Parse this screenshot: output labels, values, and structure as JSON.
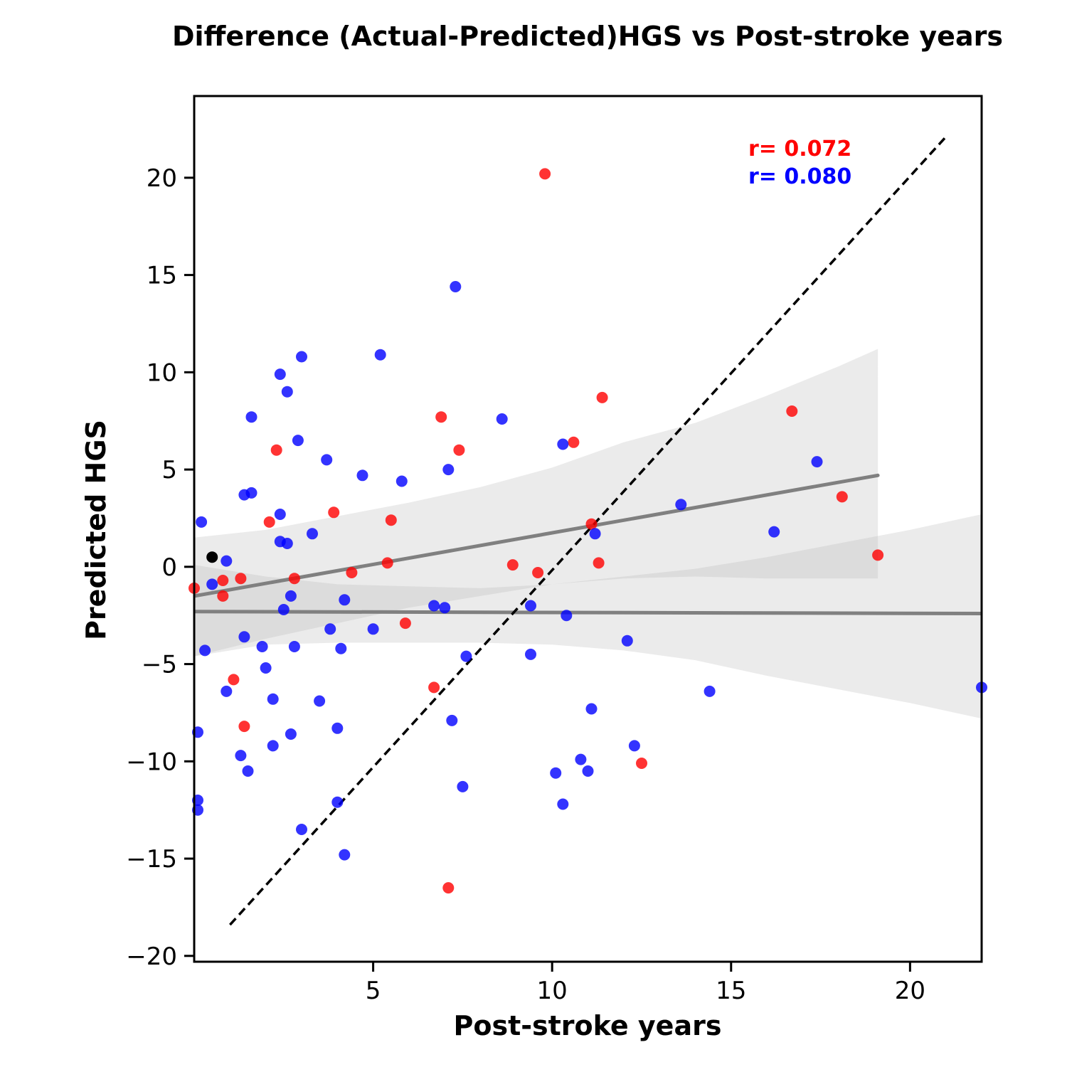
{
  "chart_data": {
    "type": "scatter",
    "title": "Difference (Actual-Predicted)HGS vs Post-stroke years",
    "xlabel": "Post-stroke years",
    "ylabel": "Predicted HGS",
    "xlim": [
      0,
      22
    ],
    "ylim": [
      -20.3,
      24.2
    ],
    "xticks": [
      5,
      10,
      15,
      20
    ],
    "yticks": [
      -20,
      -15,
      -10,
      -5,
      0,
      5,
      10,
      15,
      20
    ],
    "xtick_labels": [
      "5",
      "10",
      "15",
      "20"
    ],
    "ytick_labels": [
      "−20",
      "−15",
      "−10",
      "−5",
      "0",
      "5",
      "10",
      "15",
      "20"
    ],
    "grid": false,
    "annotations": [
      {
        "text": "r= 0.072",
        "color": "#ff0000"
      },
      {
        "text": "r= 0.080",
        "color": "#0000ff"
      }
    ],
    "identity_line": {
      "x": [
        1.0,
        21.0
      ],
      "y": [
        -18.4,
        22.1
      ],
      "style": "dashed",
      "color": "#000000"
    },
    "series": [
      {
        "color": "#ff0000",
        "points": [
          [
            0.0,
            -1.1
          ],
          [
            0.8,
            -0.7
          ],
          [
            0.8,
            -1.5
          ],
          [
            1.3,
            -0.6
          ],
          [
            1.1,
            -5.8
          ],
          [
            1.4,
            -8.2
          ],
          [
            2.1,
            2.3
          ],
          [
            2.3,
            6.0
          ],
          [
            2.8,
            -0.6
          ],
          [
            3.9,
            2.8
          ],
          [
            4.4,
            -0.3
          ],
          [
            5.4,
            0.2
          ],
          [
            5.5,
            2.4
          ],
          [
            5.9,
            -2.9
          ],
          [
            6.7,
            -6.2
          ],
          [
            6.9,
            7.7
          ],
          [
            7.1,
            -16.5
          ],
          [
            7.4,
            6.0
          ],
          [
            8.9,
            0.1
          ],
          [
            9.6,
            -0.3
          ],
          [
            9.8,
            20.2
          ],
          [
            10.6,
            6.4
          ],
          [
            11.1,
            2.2
          ],
          [
            11.3,
            0.2
          ],
          [
            11.4,
            8.7
          ],
          [
            12.5,
            -10.1
          ],
          [
            16.7,
            8.0
          ],
          [
            18.1,
            3.6
          ],
          [
            19.1,
            0.6
          ]
        ],
        "fit": {
          "x": [
            0.0,
            19.1
          ],
          "y": [
            -1.5,
            4.7
          ]
        },
        "ci": {
          "x": [
            0.0,
            2,
            4,
            6,
            8,
            10,
            12,
            14,
            16,
            18,
            19.1
          ],
          "lower": [
            -4.6,
            -3.7,
            -2.9,
            -2.1,
            -1.5,
            -0.9,
            -0.6,
            -0.5,
            -0.6,
            -0.6,
            -0.6
          ],
          "upper": [
            1.5,
            1.9,
            2.6,
            3.3,
            4.1,
            5.1,
            6.4,
            7.4,
            8.8,
            10.3,
            11.2
          ]
        }
      },
      {
        "color": "#0000ff",
        "points": [
          [
            0.1,
            -8.5
          ],
          [
            0.1,
            -12.0
          ],
          [
            0.1,
            -12.5
          ],
          [
            0.2,
            2.3
          ],
          [
            0.3,
            -4.3
          ],
          [
            0.5,
            -0.9
          ],
          [
            0.9,
            0.3
          ],
          [
            0.9,
            -6.4
          ],
          [
            1.3,
            -9.7
          ],
          [
            1.4,
            3.7
          ],
          [
            1.4,
            -3.6
          ],
          [
            1.5,
            -10.5
          ],
          [
            1.6,
            7.7
          ],
          [
            1.6,
            3.8
          ],
          [
            1.9,
            -4.1
          ],
          [
            2.0,
            -5.2
          ],
          [
            2.2,
            -6.8
          ],
          [
            2.2,
            -9.2
          ],
          [
            2.4,
            9.9
          ],
          [
            2.4,
            2.7
          ],
          [
            2.4,
            1.3
          ],
          [
            2.5,
            -2.2
          ],
          [
            2.6,
            1.2
          ],
          [
            2.6,
            9.0
          ],
          [
            2.7,
            -1.5
          ],
          [
            2.7,
            -8.6
          ],
          [
            2.8,
            -4.1
          ],
          [
            2.9,
            6.5
          ],
          [
            3.0,
            10.8
          ],
          [
            3.0,
            -13.5
          ],
          [
            3.3,
            1.7
          ],
          [
            3.5,
            -6.9
          ],
          [
            3.7,
            5.5
          ],
          [
            3.8,
            -3.2
          ],
          [
            4.0,
            -8.3
          ],
          [
            4.0,
            -12.1
          ],
          [
            4.1,
            -4.2
          ],
          [
            4.2,
            -1.7
          ],
          [
            4.2,
            -14.8
          ],
          [
            4.7,
            4.7
          ],
          [
            5.0,
            -3.2
          ],
          [
            5.2,
            10.9
          ],
          [
            5.8,
            4.4
          ],
          [
            6.7,
            -2.0
          ],
          [
            7.0,
            -2.1
          ],
          [
            7.1,
            5.0
          ],
          [
            7.3,
            14.4
          ],
          [
            7.2,
            -7.9
          ],
          [
            7.5,
            -11.3
          ],
          [
            7.6,
            -4.6
          ],
          [
            8.6,
            7.6
          ],
          [
            9.4,
            -2.0
          ],
          [
            9.4,
            -4.5
          ],
          [
            10.1,
            -10.6
          ],
          [
            10.3,
            -12.2
          ],
          [
            10.3,
            6.3
          ],
          [
            10.4,
            -2.5
          ],
          [
            10.8,
            -9.9
          ],
          [
            11.0,
            -10.5
          ],
          [
            11.1,
            -7.3
          ],
          [
            11.2,
            1.7
          ],
          [
            12.1,
            -3.8
          ],
          [
            12.3,
            -9.2
          ],
          [
            13.6,
            3.2
          ],
          [
            14.4,
            -6.4
          ],
          [
            16.2,
            1.8
          ],
          [
            17.4,
            5.4
          ],
          [
            22.0,
            -6.2
          ]
        ],
        "fit": {
          "x": [
            0.0,
            22.0
          ],
          "y": [
            -2.3,
            -2.4
          ]
        },
        "ci": {
          "x": [
            0.0,
            2,
            4,
            6,
            8,
            10,
            12,
            14,
            16,
            18,
            20,
            22
          ],
          "lower": [
            -4.6,
            -4.0,
            -3.9,
            -3.9,
            -3.9,
            -4.0,
            -4.3,
            -4.8,
            -5.6,
            -6.3,
            -7.0,
            -7.8
          ],
          "upper": [
            0.1,
            -0.5,
            -0.9,
            -1.0,
            -1.1,
            -0.9,
            -0.5,
            -0.1,
            0.5,
            1.2,
            1.9,
            2.7
          ]
        }
      },
      {
        "color": "#000000",
        "points": [
          [
            0.5,
            0.5
          ]
        ]
      }
    ]
  }
}
